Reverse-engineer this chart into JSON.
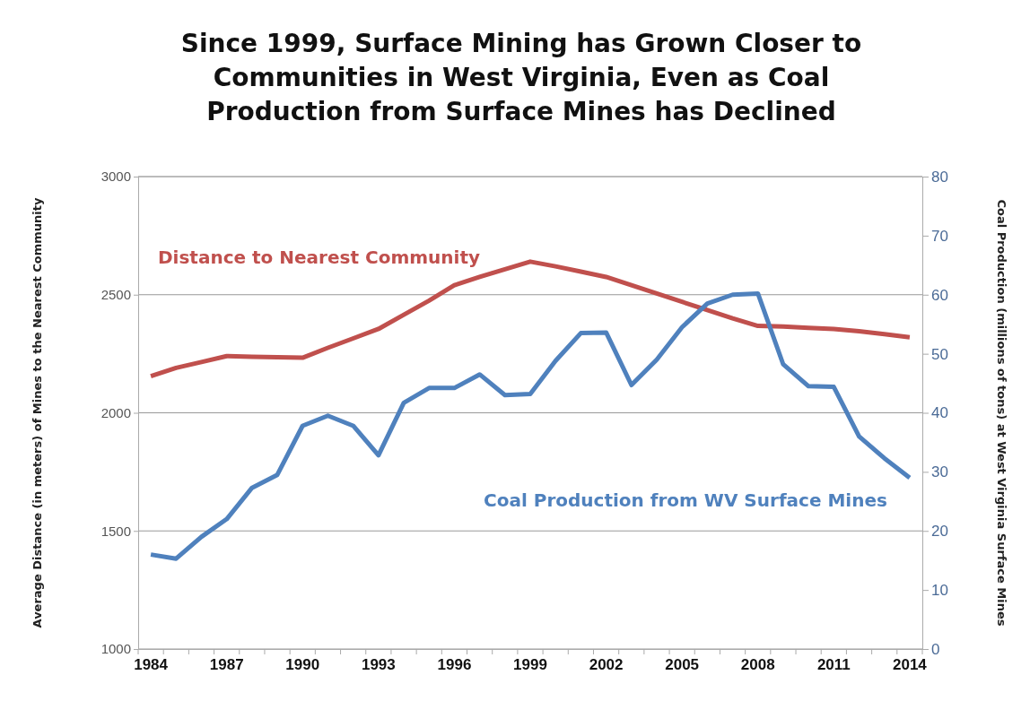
{
  "chart_data": {
    "type": "line",
    "title": "Since 1999, Surface Mining has Grown Closer to Communities in West Virginia, Even as Coal Production from Surface Mines has Declined",
    "ylabel": "Average Distance (in meters) of Mines to the Nearest Community",
    "y2label": "Coal Production (millions of tons) at West Virginia Surface Mines",
    "categories": [
      "1984",
      null,
      null,
      "1987",
      null,
      null,
      "1990",
      null,
      null,
      "1993",
      null,
      null,
      "1996",
      null,
      null,
      "1999",
      null,
      null,
      "2002",
      null,
      null,
      "2005",
      null,
      null,
      "2008",
      null,
      null,
      "2011",
      null,
      null,
      "2014"
    ],
    "series": [
      {
        "name": "Distance to Nearest Community",
        "color": "#c0504d",
        "values": [
          2155,
          2190,
          2215,
          2240,
          2237,
          2235,
          2233,
          2275,
          2315,
          2355,
          2415,
          2475,
          2540,
          2575,
          2608,
          2640,
          2620,
          2598,
          2575,
          2540,
          2505,
          2470,
          2435,
          2400,
          2368,
          2365,
          2360,
          2355,
          2345,
          2333,
          2320
        ]
      },
      {
        "name": "Coal Production from WV Surface Mines",
        "color": "#4f81bd",
        "axis": "y2",
        "values": [
          16,
          15.3,
          19,
          22,
          27.3,
          29.5,
          37.8,
          39.5,
          37.8,
          32.8,
          41.7,
          44.2,
          44.2,
          46.5,
          43,
          43.2,
          48.8,
          53.5,
          53.6,
          44.7,
          49,
          54.5,
          58.5,
          60,
          60.2,
          48.2,
          44.5,
          44.4,
          36,
          32.3,
          29
        ]
      }
    ],
    "ylim": [
      1000,
      3000
    ],
    "yticks": [
      1000,
      1500,
      2000,
      2500,
      3000
    ],
    "y2lim": [
      0,
      80
    ],
    "y2ticks": [
      0,
      10,
      20,
      30,
      40,
      50,
      60,
      70,
      80
    ],
    "grid": "y",
    "legend": false,
    "marker": "none",
    "line_style": "solid"
  }
}
